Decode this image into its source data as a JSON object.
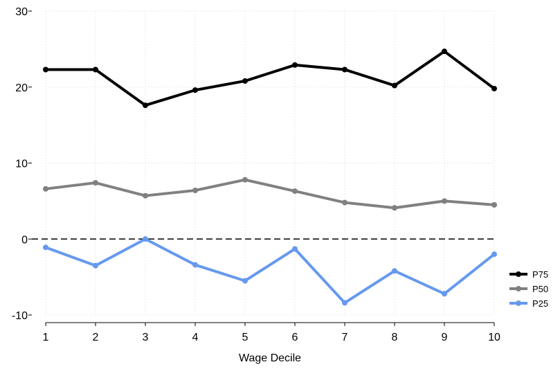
{
  "chart_data": {
    "type": "line",
    "xlabel": "Wage Decile",
    "ylabel": "",
    "x": [
      1,
      2,
      3,
      4,
      5,
      6,
      7,
      8,
      9,
      10
    ],
    "xlim": [
      1,
      10
    ],
    "ylim": [
      -10,
      30
    ],
    "yticks": [
      -10,
      0,
      10,
      20,
      30
    ],
    "grid": true,
    "reference_line": {
      "y": 0,
      "style": "dashed"
    },
    "legend": {
      "placement": "right"
    },
    "series": [
      {
        "name": "P75",
        "color": "#000000",
        "values": [
          22.3,
          22.3,
          17.6,
          19.6,
          20.8,
          22.9,
          22.3,
          20.2,
          24.7,
          19.8
        ]
      },
      {
        "name": "P50",
        "color": "#808080",
        "values": [
          6.6,
          7.4,
          5.7,
          6.4,
          7.8,
          6.3,
          4.8,
          4.1,
          5.0,
          4.5
        ]
      },
      {
        "name": "P25",
        "color": "#6699EE",
        "values": [
          -1.1,
          -3.5,
          0.0,
          -3.4,
          -5.5,
          -1.3,
          -8.4,
          -4.2,
          -7.2,
          -2.0
        ]
      }
    ]
  }
}
